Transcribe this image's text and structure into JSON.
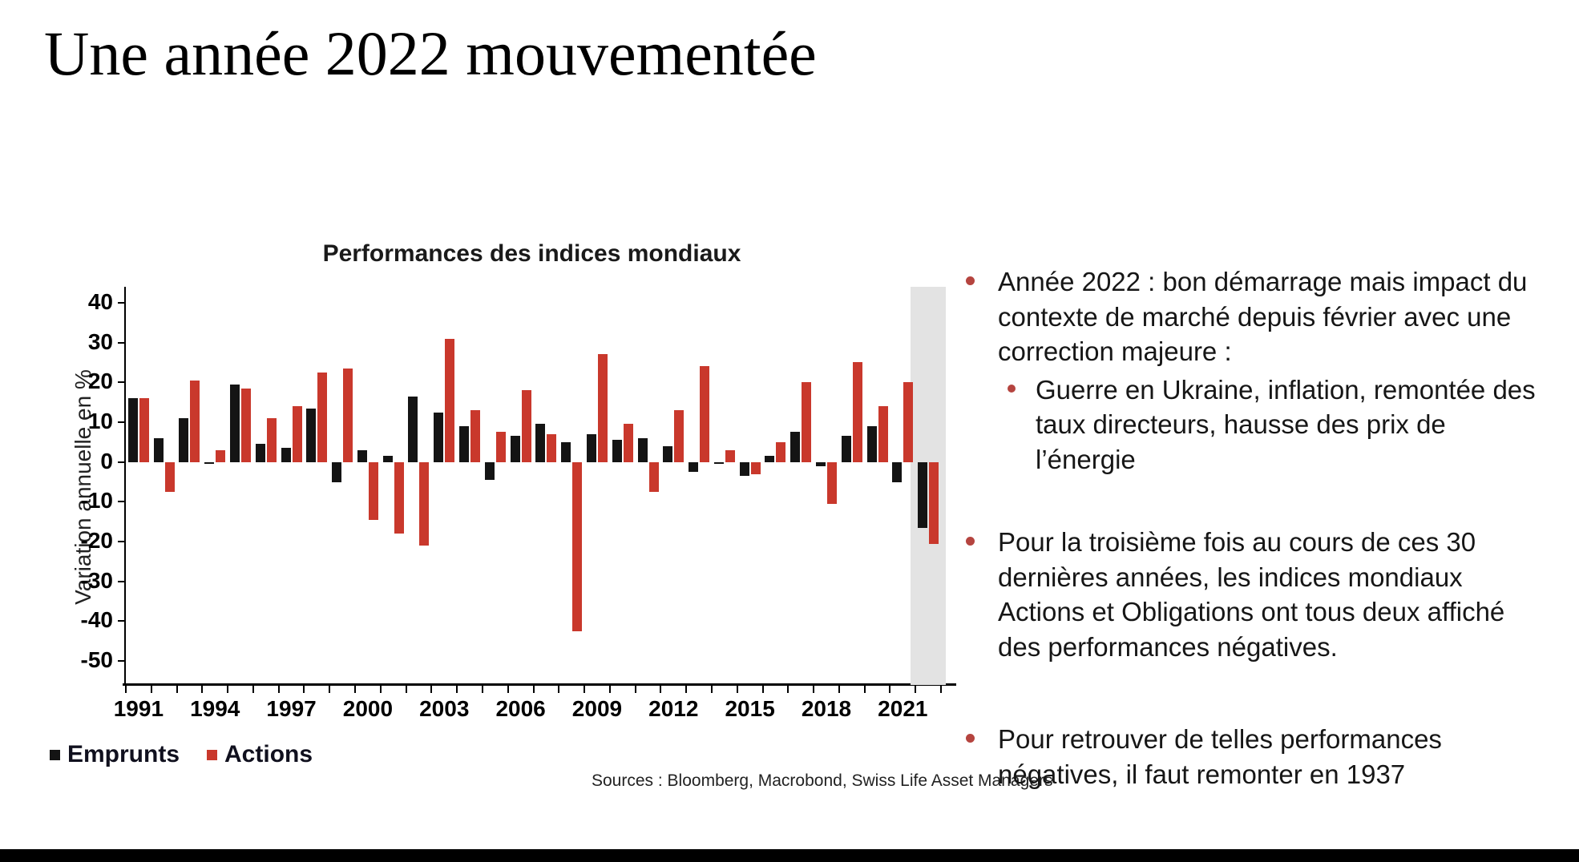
{
  "slide": {
    "title": "Une année 2022 mouvementée",
    "bullets": [
      {
        "level": 1,
        "text": "Année 2022 : bon démarrage mais impact du contexte de marché depuis février avec une correction majeure :"
      },
      {
        "level": 2,
        "text": "Guerre en Ukraine, inflation, remontée des taux directeurs, hausse des prix de l’énergie"
      },
      {
        "level": 1,
        "text": "Pour la troisième fois au cours de ces 30 dernières années, les indices mondiaux Actions et Obligations ont tous deux affiché des performances négatives."
      },
      {
        "level": 1,
        "text": "Pour retrouver de telles performances négatives, il faut remonter en 1937"
      }
    ],
    "sources": "Sources : Bloomberg, Macrobond, Swiss Life Asset Managers"
  },
  "chart_data": {
    "type": "bar",
    "title": "Performances des indices mondiaux",
    "xlabel": "",
    "ylabel": "Variation annuelle en %",
    "ylim": [
      -50,
      40
    ],
    "ytick_step": 10,
    "grid": false,
    "legend_position": "bottom-left",
    "categories": [
      1991,
      1992,
      1993,
      1994,
      1995,
      1996,
      1997,
      1998,
      1999,
      2000,
      2001,
      2002,
      2003,
      2004,
      2005,
      2006,
      2007,
      2008,
      2009,
      2010,
      2011,
      2012,
      2013,
      2014,
      2015,
      2016,
      2017,
      2018,
      2019,
      2020,
      2021,
      2022
    ],
    "xtick_labels": [
      "1991",
      "1994",
      "1997",
      "2000",
      "2003",
      "2006",
      "2009",
      "2012",
      "2015",
      "2018",
      "2021"
    ],
    "series": [
      {
        "name": "Emprunts",
        "color": "#141414",
        "values": [
          16,
          6,
          11,
          -0.5,
          19.5,
          4.5,
          3.5,
          13.5,
          -5,
          3,
          1.5,
          16.5,
          12.5,
          9,
          -4.5,
          6.5,
          9.5,
          5,
          7,
          5.5,
          6,
          4,
          -2.5,
          -0.5,
          -3.5,
          1.5,
          7.5,
          -1,
          6.5,
          9,
          -5,
          -16.5
        ]
      },
      {
        "name": "Actions",
        "color": "#c9382c",
        "values": [
          16,
          -7.5,
          20.5,
          3,
          18.5,
          11,
          14,
          22.5,
          23.5,
          -14.5,
          -18,
          -21,
          31,
          13,
          7.5,
          18,
          7,
          -42.5,
          27,
          9.5,
          -7.5,
          13,
          24,
          3,
          -3,
          5,
          20,
          -10.5,
          25,
          14,
          20,
          -20.5
        ]
      }
    ],
    "highlight": {
      "year": 2022,
      "color": "#e3e3e3"
    }
  }
}
